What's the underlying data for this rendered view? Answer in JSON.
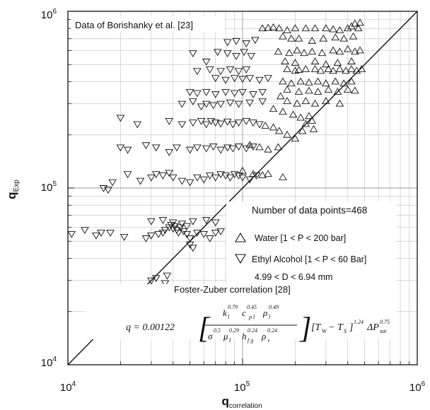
{
  "chart_data": {
    "type": "scatter",
    "scale": "log-log",
    "xlabel": "q",
    "xlabel_sub": "correlation",
    "ylabel": "q",
    "ylabel_sub": "Exp",
    "xlim": [
      10000,
      1000000
    ],
    "ylim": [
      10000,
      1000000
    ],
    "grid": true,
    "x_ticks": [
      {
        "value": 10000,
        "base": "10",
        "exp": "4"
      },
      {
        "value": 100000,
        "base": "10",
        "exp": "5"
      },
      {
        "value": 1000000,
        "base": "10",
        "exp": "6"
      }
    ],
    "y_ticks": [
      {
        "value": 10000,
        "base": "10",
        "exp": "4"
      },
      {
        "value": 100000,
        "base": "10",
        "exp": "5"
      },
      {
        "value": 1000000,
        "base": "10",
        "exp": "6"
      }
    ],
    "reference_line": {
      "x": [
        10000,
        1000000
      ],
      "y": [
        10000,
        1000000
      ]
    },
    "annotations": {
      "source": "Data of Borishanky et al. [23]",
      "count": "Number of data points=468",
      "range_d": "4.99 < D < 6.94 mm",
      "correlation": "Foster-Zuber correlation [28]"
    },
    "series": [
      {
        "name": "Water [1 < P < 200 bar]",
        "marker": "triangle-up",
        "points": [
          [
            130000,
            800000
          ],
          [
            140000,
            805000
          ],
          [
            150000,
            810000
          ],
          [
            162000,
            800000
          ],
          [
            180000,
            780000
          ],
          [
            200000,
            800000
          ],
          [
            230000,
            800000
          ],
          [
            260000,
            800000
          ],
          [
            300000,
            800000
          ],
          [
            330000,
            790000
          ],
          [
            360000,
            780000
          ],
          [
            400000,
            800000
          ],
          [
            420000,
            820000
          ],
          [
            440000,
            850000
          ],
          [
            460000,
            800000
          ],
          [
            470000,
            860000
          ],
          [
            170000,
            720000
          ],
          [
            190000,
            700000
          ],
          [
            210000,
            700000
          ],
          [
            250000,
            680000
          ],
          [
            290000,
            700000
          ],
          [
            340000,
            710000
          ],
          [
            380000,
            700000
          ],
          [
            430000,
            720000
          ],
          [
            160000,
            590000
          ],
          [
            185000,
            580000
          ],
          [
            205000,
            600000
          ],
          [
            225000,
            580000
          ],
          [
            250000,
            590000
          ],
          [
            285000,
            580000
          ],
          [
            330000,
            600000
          ],
          [
            360000,
            590000
          ],
          [
            400000,
            610000
          ],
          [
            440000,
            590000
          ],
          [
            470000,
            600000
          ],
          [
            175000,
            520000
          ],
          [
            200000,
            510000
          ],
          [
            260000,
            520000
          ],
          [
            300000,
            500000
          ],
          [
            350000,
            510000
          ],
          [
            420000,
            520000
          ],
          [
            180000,
            470000
          ],
          [
            200000,
            460000
          ],
          [
            210000,
            465000
          ],
          [
            230000,
            470000
          ],
          [
            260000,
            470000
          ],
          [
            280000,
            460000
          ],
          [
            310000,
            470000
          ],
          [
            330000,
            460000
          ],
          [
            360000,
            470000
          ],
          [
            390000,
            460000
          ],
          [
            420000,
            470000
          ],
          [
            450000,
            460000
          ],
          [
            480000,
            470000
          ],
          [
            170000,
            400000
          ],
          [
            190000,
            390000
          ],
          [
            215000,
            400000
          ],
          [
            240000,
            395000
          ],
          [
            270000,
            400000
          ],
          [
            300000,
            390000
          ],
          [
            340000,
            400000
          ],
          [
            380000,
            390000
          ],
          [
            420000,
            400000
          ],
          [
            180000,
            360000
          ],
          [
            210000,
            350000
          ],
          [
            240000,
            355000
          ],
          [
            270000,
            350000
          ],
          [
            310000,
            360000
          ],
          [
            350000,
            350000
          ],
          [
            400000,
            360000
          ],
          [
            440000,
            355000
          ],
          [
            165000,
            330000
          ],
          [
            180000,
            310000
          ],
          [
            205000,
            300000
          ],
          [
            230000,
            310000
          ],
          [
            260000,
            300000
          ],
          [
            300000,
            310000
          ],
          [
            360000,
            300000
          ],
          [
            150000,
            280000
          ],
          [
            170000,
            270000
          ],
          [
            195000,
            260000
          ],
          [
            215000,
            250000
          ],
          [
            240000,
            255000
          ],
          [
            250000,
            240000
          ],
          [
            230000,
            230000
          ],
          [
            255000,
            215000
          ],
          [
            135000,
            225000
          ],
          [
            150000,
            220000
          ],
          [
            162000,
            210000
          ],
          [
            180000,
            200000
          ],
          [
            200000,
            190000
          ],
          [
            220000,
            210000
          ],
          [
            110000,
            175000
          ],
          [
            125000,
            170000
          ],
          [
            140000,
            165000
          ],
          [
            160000,
            170000
          ],
          [
            100000,
            125000
          ],
          [
            115000,
            120000
          ],
          [
            130000,
            118000
          ],
          [
            140000,
            120000
          ],
          [
            170000,
            115000
          ]
        ]
      },
      {
        "name": "Ethyl Alcohol [1 < P < 60 Bar]",
        "marker": "triangle-down",
        "points": [
          [
            10500,
            55000
          ],
          [
            12500,
            58000
          ],
          [
            14500,
            54000
          ],
          [
            15500,
            56000
          ],
          [
            17500,
            56000
          ],
          [
            21000,
            53000
          ],
          [
            28000,
            52000
          ],
          [
            30000,
            54000
          ],
          [
            33000,
            55000
          ],
          [
            35000,
            56000
          ],
          [
            36000,
            58000
          ],
          [
            38000,
            60000
          ],
          [
            39000,
            62000
          ],
          [
            40000,
            59000
          ],
          [
            41000,
            61000
          ],
          [
            42000,
            58000
          ],
          [
            43000,
            56000
          ],
          [
            44000,
            60000
          ],
          [
            46000,
            57000
          ],
          [
            48000,
            55000
          ],
          [
            50000,
            52000
          ],
          [
            55000,
            56000
          ],
          [
            60000,
            55000
          ],
          [
            65000,
            52000
          ],
          [
            70000,
            56000
          ],
          [
            75000,
            57000
          ],
          [
            30000,
            65000
          ],
          [
            35000,
            66000
          ],
          [
            40000,
            64000
          ],
          [
            45000,
            63000
          ],
          [
            48000,
            61000
          ],
          [
            52000,
            65000
          ],
          [
            62000,
            66000
          ],
          [
            70000,
            64000
          ],
          [
            30000,
            30000
          ],
          [
            32000,
            31000
          ],
          [
            36000,
            29000
          ],
          [
            37000,
            32000
          ],
          [
            33000,
            27000
          ],
          [
            40000,
            27000
          ],
          [
            50000,
            48000
          ],
          [
            52000,
            46000
          ],
          [
            16000,
            100000
          ],
          [
            17000,
            98000
          ],
          [
            18000,
            108000
          ],
          [
            22000,
            120000
          ],
          [
            26000,
            110000
          ],
          [
            30000,
            115000
          ],
          [
            32000,
            120000
          ],
          [
            35000,
            118000
          ],
          [
            38000,
            122000
          ],
          [
            40000,
            115000
          ],
          [
            45000,
            110000
          ],
          [
            50000,
            108000
          ],
          [
            55000,
            115000
          ],
          [
            60000,
            112000
          ],
          [
            65000,
            118000
          ],
          [
            70000,
            115000
          ],
          [
            75000,
            120000
          ],
          [
            80000,
            118000
          ],
          [
            85000,
            115000
          ],
          [
            90000,
            120000
          ],
          [
            95000,
            118000
          ],
          [
            100000,
            115000
          ],
          [
            110000,
            112000
          ],
          [
            120000,
            118000
          ],
          [
            20000,
            170000
          ],
          [
            22000,
            165000
          ],
          [
            28000,
            175000
          ],
          [
            32000,
            170000
          ],
          [
            38000,
            160000
          ],
          [
            42000,
            170000
          ],
          [
            50000,
            165000
          ],
          [
            55000,
            170000
          ],
          [
            62000,
            168000
          ],
          [
            68000,
            172000
          ],
          [
            75000,
            165000
          ],
          [
            82000,
            170000
          ],
          [
            88000,
            168000
          ],
          [
            95000,
            172000
          ],
          [
            105000,
            168000
          ],
          [
            115000,
            172000
          ],
          [
            20000,
            250000
          ],
          [
            25000,
            230000
          ],
          [
            38000,
            240000
          ],
          [
            45000,
            230000
          ],
          [
            52000,
            235000
          ],
          [
            58000,
            240000
          ],
          [
            62000,
            230000
          ],
          [
            66000,
            240000
          ],
          [
            70000,
            235000
          ],
          [
            75000,
            232000
          ],
          [
            82000,
            238000
          ],
          [
            88000,
            230000
          ],
          [
            95000,
            235000
          ],
          [
            105000,
            240000
          ],
          [
            115000,
            235000
          ],
          [
            125000,
            230000
          ],
          [
            45000,
            300000
          ],
          [
            52000,
            310000
          ],
          [
            58000,
            290000
          ],
          [
            62000,
            300000
          ],
          [
            68000,
            295000
          ],
          [
            75000,
            300000
          ],
          [
            85000,
            305000
          ],
          [
            95000,
            300000
          ],
          [
            110000,
            305000
          ],
          [
            130000,
            310000
          ],
          [
            50000,
            350000
          ],
          [
            55000,
            345000
          ],
          [
            62000,
            350000
          ],
          [
            70000,
            340000
          ],
          [
            80000,
            350000
          ],
          [
            90000,
            345000
          ],
          [
            100000,
            350000
          ],
          [
            115000,
            340000
          ],
          [
            130000,
            350000
          ],
          [
            70000,
            420000
          ],
          [
            80000,
            410000
          ],
          [
            90000,
            420000
          ],
          [
            100000,
            415000
          ],
          [
            110000,
            420000
          ],
          [
            125000,
            410000
          ],
          [
            140000,
            420000
          ],
          [
            55000,
            460000
          ],
          [
            65000,
            470000
          ],
          [
            75000,
            460000
          ],
          [
            85000,
            470000
          ],
          [
            95000,
            460000
          ],
          [
            105000,
            470000
          ],
          [
            52000,
            580000
          ],
          [
            62000,
            520000
          ],
          [
            72000,
            590000
          ],
          [
            82000,
            580000
          ],
          [
            92000,
            560000
          ],
          [
            102000,
            590000
          ],
          [
            112000,
            560000
          ],
          [
            82000,
            670000
          ],
          [
            92000,
            680000
          ],
          [
            105000,
            660000
          ],
          [
            118000,
            690000
          ]
        ]
      }
    ],
    "legend": {
      "placement": "lower-right"
    }
  }
}
